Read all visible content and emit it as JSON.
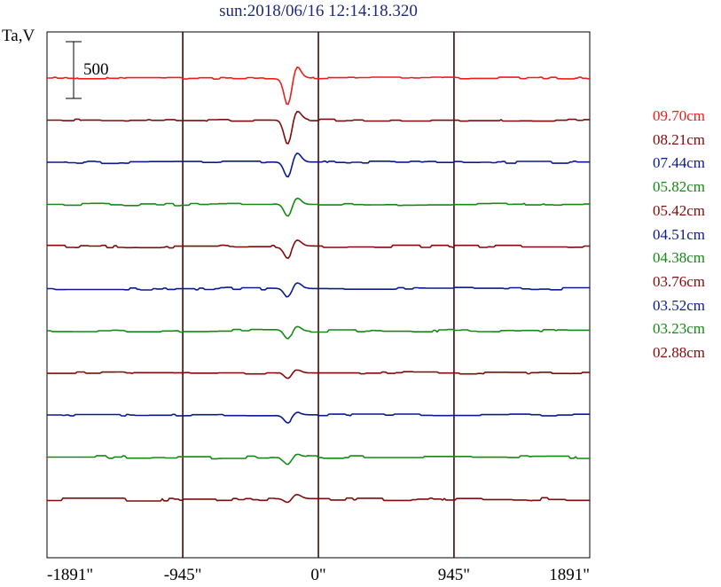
{
  "chart_data": {
    "type": "line",
    "title": "sun:2018/06/16 12:14:18.320",
    "ylabel": "Ta,V",
    "scale_bar_label": "500",
    "x_ticks": [
      "-1891\"",
      "-945\"",
      "0\"",
      "945\"",
      "1891\""
    ],
    "x_tick_values": [
      -1891,
      -945,
      0,
      945,
      1891
    ],
    "xlim": [
      -1891,
      1891
    ],
    "grid_x": [
      -945,
      0,
      945
    ],
    "legend_placement": "right",
    "series": [
      {
        "name": "09.70cm",
        "color": "#ee1c1c",
        "dip": 260,
        "bump": 110,
        "noise": 8
      },
      {
        "name": "08.21cm",
        "color": "#7f0b0b",
        "dip": 230,
        "bump": 90,
        "noise": 9
      },
      {
        "name": "07.44cm",
        "color": "#0a1a8c",
        "dip": 150,
        "bump": 90,
        "noise": 10
      },
      {
        "name": "05.82cm",
        "color": "#138a13",
        "dip": 120,
        "bump": 60,
        "noise": 10
      },
      {
        "name": "05.42cm",
        "color": "#7f0b0b",
        "dip": 110,
        "bump": 60,
        "noise": 11
      },
      {
        "name": "04.51cm",
        "color": "#0a1a8c",
        "dip": 90,
        "bump": 50,
        "noise": 11
      },
      {
        "name": "04.38cm",
        "color": "#138a13",
        "dip": 90,
        "bump": 50,
        "noise": 12
      },
      {
        "name": "03.76cm",
        "color": "#7f0b0b",
        "dip": 60,
        "bump": 30,
        "noise": 10
      },
      {
        "name": "03.52cm",
        "color": "#0a1a8c",
        "dip": 70,
        "bump": 20,
        "noise": 8
      },
      {
        "name": "03.23cm",
        "color": "#138a13",
        "dip": 60,
        "bump": 30,
        "noise": 14
      },
      {
        "name": "02.88cm",
        "color": "#7f0b0b",
        "dip": 40,
        "bump": 40,
        "noise": 14
      }
    ]
  }
}
